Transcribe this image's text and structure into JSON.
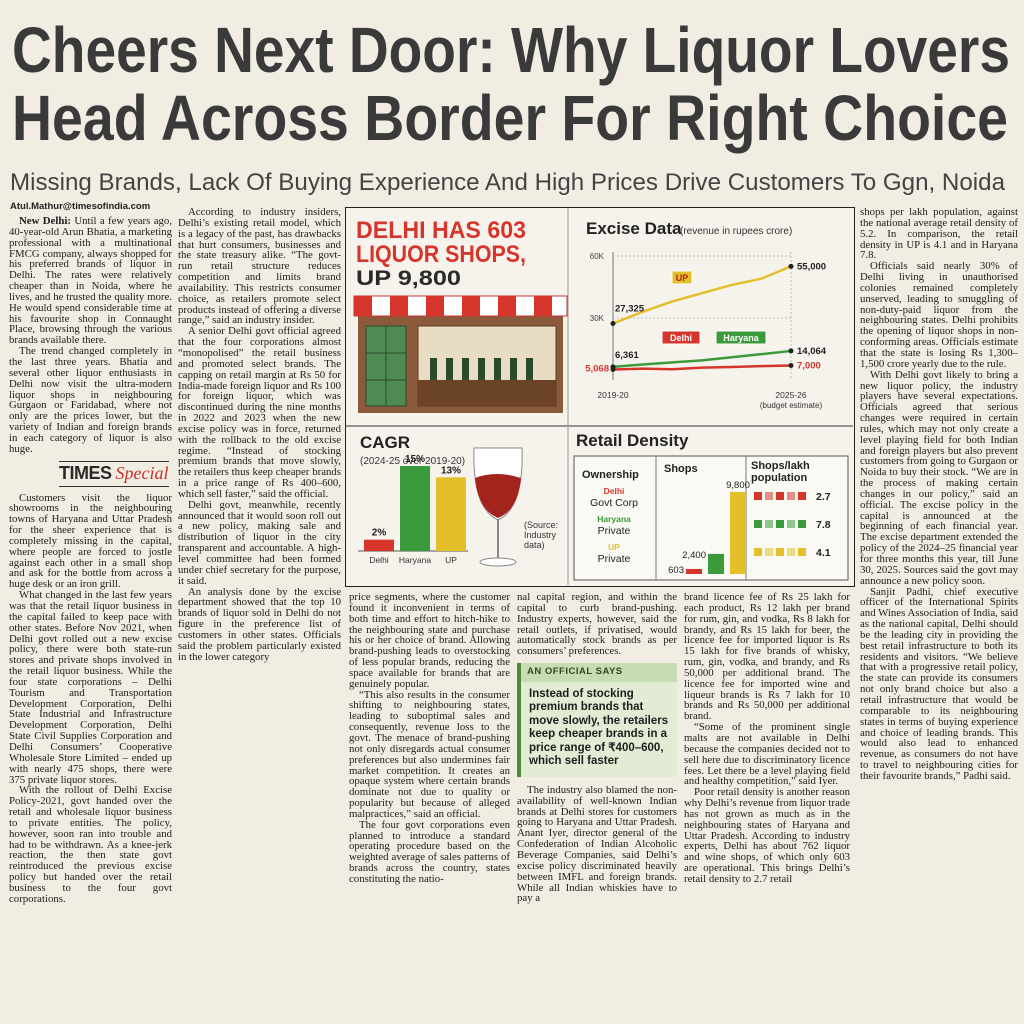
{
  "header": {
    "title_lines": [
      "Cheers Next Door: Why Liquor Lovers",
      "Head Across Border For Right Choice"
    ],
    "subtitle": "Missing Brands, Lack Of Buying Experience And High Prices Drive Customers To Ggn, Noida"
  },
  "byline": "Atul.Mathur@timesofindia.com",
  "logo": {
    "brand": "TIMES",
    "label": "Special"
  },
  "article": {
    "dateline": "New Delhi:",
    "columns": [
      [
        "Until a few years ago, 40-year-old Arun Bhatia, a marketing professional with a multinational FMCG company, always shopped for his preferred brands of liquor in Delhi. The rates were relatively cheaper than in Noida, where he lives, and he trusted the quality more. He would spend considerable time at his favourite shop in Connaught Place, browsing through the various brands available there.",
        "The trend changed completely in the last three years. Bhatia and several other liquor enthusiasts in Delhi now visit the ultra-modern liquor shops in neighbouring Gurgaon or Faridabad, where not only are the prices lower, but the variety of Indian and foreign brands in each category of liquor is also huge.",
        "Customers visit the liquor showrooms in the neighbouring towns of Haryana and Uttar Pradesh for the sheer experience that is completely missing in the capital, where people are forced to jostle against each other in a small shop and ask for the bottle from across a huge desk or an iron grill.",
        "What changed in the last few years was that the retail liquor business in the capital failed to keep pace with other states. Before Nov 2021, when Delhi govt rolled out a new excise policy, there were both state-run stores and private shops involved in the retail liquor business. While the four state corporations – Delhi Tourism and Transportation Development Corporation, Delhi State Industrial and Infrastructure Development Corporation, Delhi State Civil Supplies Corporation and Delhi Consumers’ Cooperative Wholesale Store Limited – ended up with nearly 475 shops, there were 375 private liquor stores.",
        "With the rollout of Delhi Excise Policy-2021, govt handed over the retail and wholesale liquor business to private entities. The policy, however, soon ran into trouble and had to be withdrawn. As a knee-jerk reaction, the then state govt reintroduced the previous excise policy but handed over the retail business to the four govt corporations."
      ],
      [
        "According to industry insiders, Delhi’s existing retail model, which is a legacy of the past, has drawbacks that hurt consumers, businesses and the state treasury alike. “The govt-run retail structure reduces competition and limits brand availability. This restricts consumer choice, as retailers promote select products instead of offering a diverse range,” said an industry insider.",
        "A senior Delhi govt official agreed that the four corporations almost “monopolised” the retail business and promoted select brands. The capping on retail margin at Rs 50 for India-made foreign liquor and Rs 100 for foreign liquor, which was discontinued during the nine months in 2022 and 2023 when the new excise policy was in force, returned with the rollback to the old excise regime. “Instead of stocking premium brands that move slowly, the retailers thus keep cheaper brands in a price range of Rs 400–600, which sell faster,” said the official.",
        "Delhi govt, meanwhile, recently announced that it would soon roll out a new policy, making sale and distribution of liquor in the city transparent and accountable. A high-level committee had been formed under chief secretary for the purpose, it said.",
        "An analysis done by the excise department showed that the top 10 brands of liquor sold in Delhi do not figure in the preference list of customers in other states. Officials said the problem particularly existed in the lower category"
      ],
      [
        "price segments, where the customer found it inconvenient in terms of both time and effort to hitch-hike to the neighbouring state and purchase his or her choice of brand. Allowing brand-pushing leads to overstocking of less popular brands, reducing the space available for brands that are genuinely popular.",
        "“This also results in the consumer shifting to neighbouring states, leading to suboptimal sales and consequently, revenue loss to the govt. The menace of brand-pushing not only disregards actual consumer preferences but also undermines fair market competition. It creates an opaque system where certain brands dominate not due to quality or popularity but because of alleged malpractices,” said an official.",
        "The four govt corporations even planned to introduce a standard operating procedure based on the weighted average of sales patterns of brands across the country, states constituting the natio-"
      ],
      [
        "nal capital region, and within the capital to curb brand-pushing. Industry experts, however, said the retail outlets, if privatised, would automatically stock brands as per consumers’ preferences.",
        "The industry also blamed the non-availability of well-known Indian brands at Delhi stores for customers going to Haryana and Uttar Pradesh. Anant Iyer, director general of the Confederation of Indian Alcoholic Beverage Companies, said Delhi’s excise policy discriminated heavily between IMFL and foreign brands. While all Indian whiskies have to pay a"
      ],
      [
        "brand licence fee of Rs 25 lakh for each product, Rs 12 lakh per brand for rum, gin, and vodka, Rs 8 lakh for brandy, and Rs 15 lakh for beer, the licence fee for imported liquor is Rs 15 lakh for five brands of whisky, rum, gin, vodka, and brandy, and Rs 50,000 per additional brand. The licence fee for imported wine and liqueur brands is Rs 7 lakh for 10 brands and Rs 50,000 per additional brand.",
        "“Some of the prominent single malts are not available in Delhi because the companies decided not to sell here due to discriminatory licence fees. Let there be a level playing field and healthy competition,” said Iyer.",
        "Poor retail density is another reason why Delhi’s revenue from liquor trade has not grown as much as in the neighbouring states of Haryana and Uttar Pradesh. According to industry experts, Delhi has about 762 liquor and wine shops, of which only 603 are operational. This brings Delhi’s retail density to 2.7 retail"
      ],
      [
        "shops per lakh population, against the national average retail density of 5.2. In comparison, the retail density in UP is 4.1 and in Haryana 7.8.",
        "Officials said nearly 30% of Delhi living in unauthorised colonies remained completely unserved, leading to smuggling of non-duty-paid liquor from the neighbouring states. Delhi prohibits the opening of liquor shops in non-conforming areas. Officials estimate that the state is losing Rs 1,300–1,500 crore yearly due to the rule.",
        "With Delhi govt likely to bring a new liquor policy, the industry players have several expectations. Officials agreed that serious changes were required in certain rules, which may not only create a level playing field for both Indian and foreign players but also prevent customers from going to Gurgaon or Noida to buy their stock. “We are in the process of making certain changes in our policy,” said an official. The excise policy in the capital is announced at the beginning of each financial year. The excise department extended the policy of the 2024–25 financial year for three months this year, till June 30, 2025. Sources said the govt may announce a new policy soon.",
        "Sanjit Padhi, chief executive officer of the International Spirits and Wines Association of India, said as the national capital, Delhi should be the leading city in providing the best retail infrastructure to both its residents and visitors. “We believe that with a progressive retail policy, the state can provide its consumers not only brand choice but also a retail infrastructure that would be comparable to its neighbouring states in terms of buying experience and choice of leading brands. This would also lead to enhanced revenue, as consumers do not have to travel to neighbouring cities for their favourite brands,” Padhi said."
      ]
    ]
  },
  "quote_box": {
    "label": "AN OFFICIAL SAYS",
    "quote": "Instead of stocking premium brands that move slowly, the retailers keep cheaper brands in a price range of ₹400–600, which sell faster"
  },
  "infographic": {
    "headline": [
      "DELHI HAS 603",
      "LIQUOR SHOPS,"
    ],
    "headline_accent": "UP 9,800",
    "source": "(Source: Industry data)"
  },
  "chart_data": [
    {
      "type": "line",
      "title": "Excise Data",
      "subtitle": "(revenue in rupees crore)",
      "categories": [
        "2019-20",
        null,
        null,
        null,
        null,
        null,
        "2025-26"
      ],
      "x_note": "(budget estimate)",
      "ylim": [
        0,
        60000
      ],
      "yticks": [
        {
          "value": 30000,
          "label": "30K"
        },
        {
          "value": 60000,
          "label": "60K"
        }
      ],
      "grid": true,
      "series": [
        {
          "name": "UP",
          "color": "#e3bf2a",
          "values": [
            27325,
            33000,
            38000,
            42000,
            46000,
            49000,
            55000
          ],
          "value_labels": [
            "27,325",
            null,
            null,
            null,
            null,
            null,
            "55,000"
          ]
        },
        {
          "name": "Haryana",
          "color": "#3b9a3b",
          "values": [
            6361,
            7500,
            8500,
            9500,
            11000,
            12500,
            14064
          ],
          "value_labels": [
            "6,361",
            null,
            null,
            null,
            null,
            null,
            "14,064"
          ]
        },
        {
          "name": "Delhi",
          "color": "#d6352b",
          "values": [
            5068,
            5500,
            5200,
            6000,
            6300,
            6700,
            7000
          ],
          "value_labels": [
            "5,068",
            null,
            null,
            null,
            null,
            null,
            "7,000"
          ]
        }
      ]
    },
    {
      "type": "bar",
      "title": "CAGR",
      "subtitle": "(2024-25 over 2019-20)",
      "categories": [
        "Delhi",
        "Haryana",
        "UP"
      ],
      "values": [
        2,
        15,
        13
      ],
      "value_labels": [
        "2%",
        "15%",
        "13%"
      ],
      "colors": [
        "#d6352b",
        "#3b9a3b",
        "#e3bf2a"
      ]
    },
    {
      "type": "bar",
      "title": "Retail Density",
      "columns": [
        "Ownership",
        "Shops",
        "Shops/lakh population"
      ],
      "categories": [
        "Delhi",
        "Haryana",
        "UP"
      ],
      "ownership": [
        "Govt Corp",
        "Private",
        "Private"
      ],
      "values": [
        603,
        2400,
        9800
      ],
      "value_labels": [
        "603",
        "2,400",
        "9,800"
      ],
      "density": [
        2.7,
        7.8,
        4.1
      ],
      "colors": [
        "#d6352b",
        "#3b9a3b",
        "#e3bf2a"
      ]
    }
  ]
}
